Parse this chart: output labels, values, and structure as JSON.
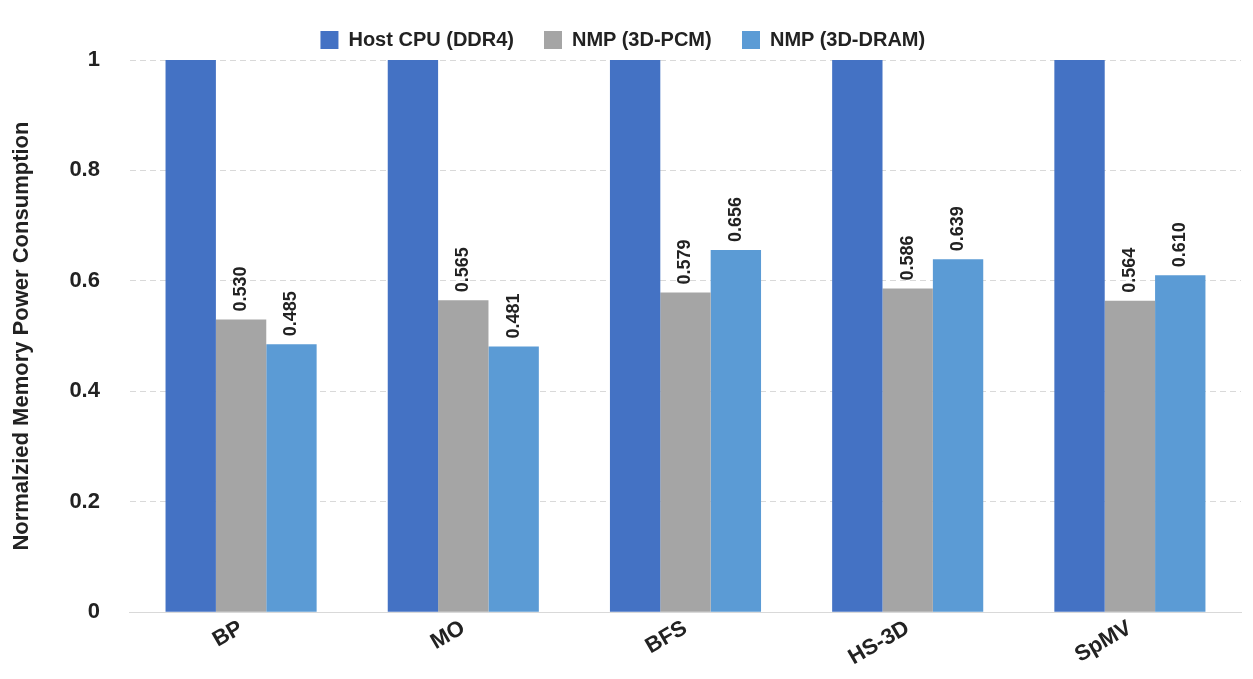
{
  "chart_data": {
    "type": "bar",
    "ylabel": "Normalzied Memory Power Consumption",
    "categories": [
      "BP",
      "MO",
      "BFS",
      "HS-3D",
      "SpMV"
    ],
    "series": [
      {
        "name": "Host CPU (DDR4)",
        "color": "#4472c4",
        "values": [
          1,
          1,
          1,
          1,
          1
        ]
      },
      {
        "name": "NMP (3D-PCM)",
        "color": "#a5a5a5",
        "values": [
          0.53,
          0.565,
          0.579,
          0.586,
          0.564
        ],
        "value_labels": [
          "0.530",
          "0.565",
          "0.579",
          "0.586",
          "0.564"
        ]
      },
      {
        "name": "NMP (3D-DRAM)",
        "color": "#5b9bd5",
        "values": [
          0.485,
          0.481,
          0.656,
          0.639,
          0.61
        ],
        "value_labels": [
          "0.485",
          "0.481",
          "0.656",
          "0.639",
          "0.610"
        ]
      }
    ],
    "ylim": [
      0,
      1
    ],
    "yticks": [
      0,
      0.2,
      0.4,
      0.6,
      0.8,
      1
    ],
    "grid": "y",
    "legend": "top"
  }
}
